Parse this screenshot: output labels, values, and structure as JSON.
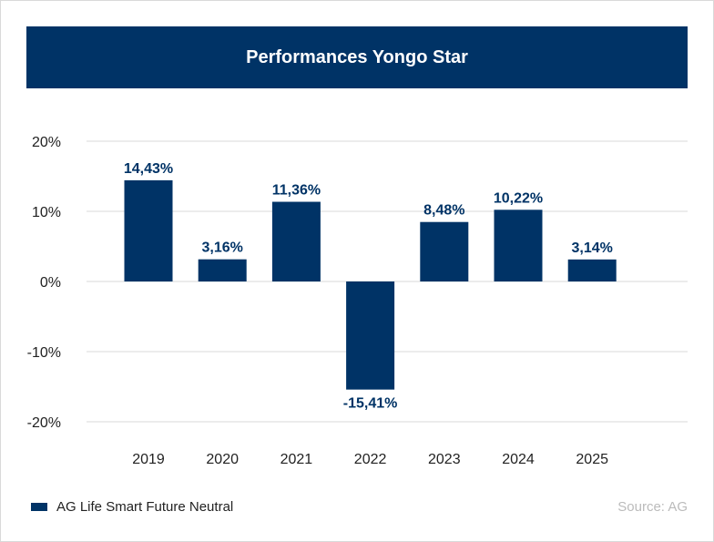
{
  "chart_data": {
    "type": "bar",
    "title": "Performances Yongo Star",
    "categories": [
      "2019",
      "2020",
      "2021",
      "2022",
      "2023",
      "2024",
      "2025"
    ],
    "series": [
      {
        "name": "AG Life Smart Future Neutral",
        "values": [
          14.43,
          3.16,
          11.36,
          -15.41,
          8.48,
          10.22,
          3.14
        ]
      }
    ],
    "data_labels": [
      "14,43%",
      "3,16%",
      "11,36%",
      "-15,41%",
      "8,48%",
      "10,22%",
      "3,14%"
    ],
    "yticks": [
      20,
      10,
      0,
      -10,
      -20
    ],
    "ytick_labels": [
      "20%",
      "10%",
      "0%",
      "-10%",
      "-20%"
    ],
    "ylim": [
      -20,
      20
    ],
    "grid": true,
    "legend": "bottom-left",
    "source": "Source: AG",
    "colors": {
      "bar": "#003366",
      "header": "#003366",
      "grid": "#d9d9d9"
    }
  }
}
